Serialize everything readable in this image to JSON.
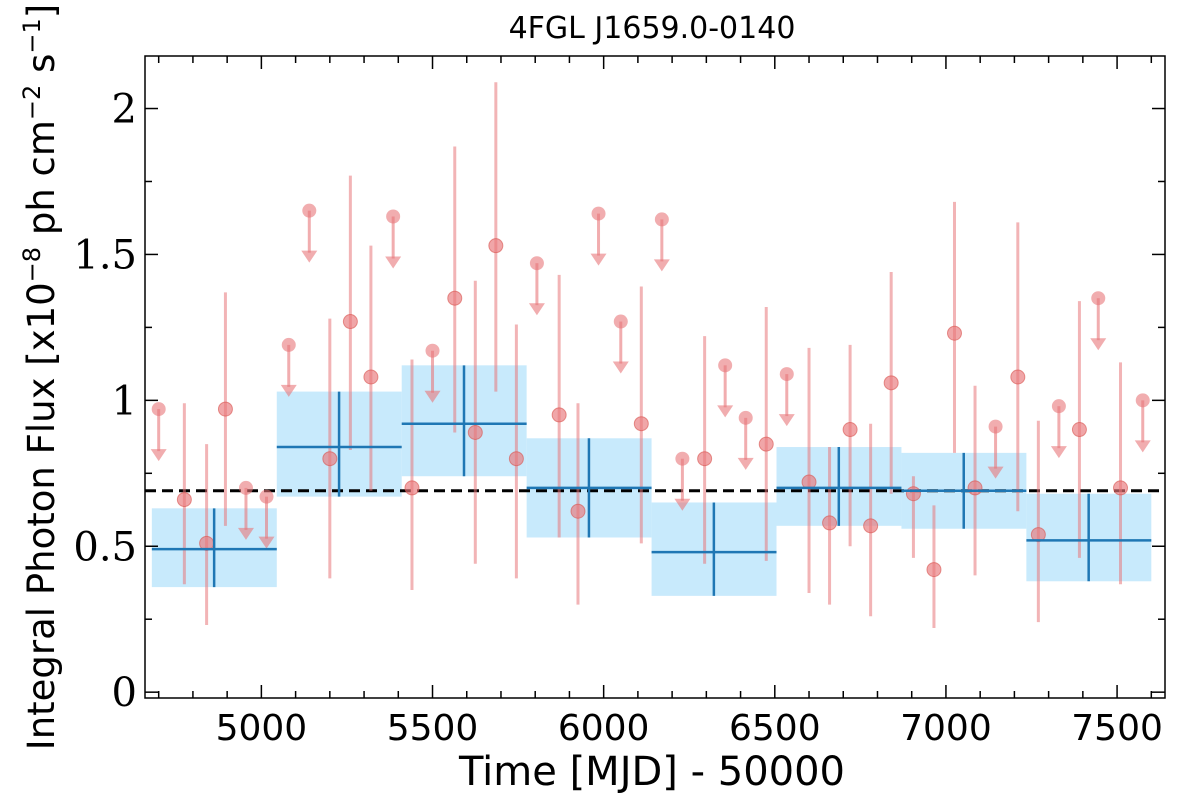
{
  "chart_data": {
    "type": "scatter",
    "title": "4FGL J1659.0-0140",
    "xlabel": "Time [MJD] - 50000",
    "ylabel": "Integral Photon Flux [x10−8 ph cm−2 s−1]",
    "ylabel_parts": {
      "p1": "Integral Photon Flux [x10",
      "s1": "−8",
      "p2": " ph cm",
      "s2": "−2",
      "p3": " s",
      "s3": "−1",
      "p4": "]"
    },
    "xlim": [
      4660,
      7640
    ],
    "ylim": [
      -0.02,
      2.18
    ],
    "xticks": [
      5000,
      5500,
      6000,
      6500,
      7000,
      7500
    ],
    "yticks": [
      0,
      0.5,
      1,
      1.5,
      2
    ],
    "yticklabels": [
      "0",
      "0.5",
      "1",
      "1.5",
      "2"
    ],
    "grid": false,
    "colors": {
      "monthly": "#e8777a",
      "yearly_line": "#1f77b4",
      "yearly_band": "#c8eafc",
      "average_line": "#000000"
    },
    "average_flux": 0.69,
    "monthly_points": [
      {
        "x": 4700,
        "y": 0.97,
        "upper_limit": true
      },
      {
        "x": 4775,
        "y": 0.66,
        "err_low": 0.29,
        "err_high": 0.33
      },
      {
        "x": 4840,
        "y": 0.51,
        "err_low": 0.28,
        "err_high": 0.34
      },
      {
        "x": 4895,
        "y": 0.97,
        "err_low": 0.4,
        "err_high": 0.4
      },
      {
        "x": 4955,
        "y": 0.7,
        "upper_limit": true
      },
      {
        "x": 5015,
        "y": 0.67,
        "upper_limit": true
      },
      {
        "x": 5080,
        "y": 1.19,
        "upper_limit": true
      },
      {
        "x": 5140,
        "y": 1.65,
        "upper_limit": true
      },
      {
        "x": 5200,
        "y": 0.8,
        "err_low": 0.41,
        "err_high": 0.48
      },
      {
        "x": 5260,
        "y": 1.27,
        "err_low": 0.44,
        "err_high": 0.5
      },
      {
        "x": 5320,
        "y": 1.08,
        "err_low": 0.39,
        "err_high": 0.45
      },
      {
        "x": 5385,
        "y": 1.63,
        "upper_limit": true
      },
      {
        "x": 5440,
        "y": 0.7,
        "err_low": 0.35,
        "err_high": 0.44
      },
      {
        "x": 5500,
        "y": 1.17,
        "upper_limit": true
      },
      {
        "x": 5565,
        "y": 1.35,
        "err_low": 0.46,
        "err_high": 0.52
      },
      {
        "x": 5625,
        "y": 0.89,
        "err_low": 0.45,
        "err_high": 0.52
      },
      {
        "x": 5685,
        "y": 1.53,
        "err_low": 0.5,
        "err_high": 0.56
      },
      {
        "x": 5745,
        "y": 0.8,
        "err_low": 0.41,
        "err_high": 0.46
      },
      {
        "x": 5805,
        "y": 1.47,
        "upper_limit": true
      },
      {
        "x": 5870,
        "y": 0.95,
        "err_low": 0.42,
        "err_high": 0.48
      },
      {
        "x": 5925,
        "y": 0.62,
        "err_low": 0.32,
        "err_high": 0.37
      },
      {
        "x": 5985,
        "y": 1.64,
        "upper_limit": true
      },
      {
        "x": 6050,
        "y": 1.27,
        "upper_limit": true
      },
      {
        "x": 6110,
        "y": 0.92,
        "err_low": 0.41,
        "err_high": 0.47
      },
      {
        "x": 6170,
        "y": 1.62,
        "upper_limit": true
      },
      {
        "x": 6230,
        "y": 0.8,
        "upper_limit": true
      },
      {
        "x": 6295,
        "y": 0.8,
        "err_low": 0.36,
        "err_high": 0.42
      },
      {
        "x": 6355,
        "y": 1.12,
        "upper_limit": true
      },
      {
        "x": 6415,
        "y": 0.94,
        "upper_limit": true
      },
      {
        "x": 6475,
        "y": 0.85,
        "err_low": 0.4,
        "err_high": 0.47
      },
      {
        "x": 6535,
        "y": 1.09,
        "upper_limit": true
      },
      {
        "x": 6600,
        "y": 0.72,
        "err_low": 0.38,
        "err_high": 0.46
      },
      {
        "x": 6660,
        "y": 0.58,
        "err_low": 0.28,
        "err_high": 0.26
      },
      {
        "x": 6720,
        "y": 0.9,
        "err_low": 0.4,
        "err_high": 0.29
      },
      {
        "x": 6780,
        "y": 0.57,
        "err_low": 0.31,
        "err_high": 0.35
      },
      {
        "x": 6840,
        "y": 1.06,
        "err_low": 0.38,
        "err_high": 0.38
      },
      {
        "x": 6905,
        "y": 0.68,
        "err_low": 0.22,
        "err_high": 0.06
      },
      {
        "x": 6965,
        "y": 0.42,
        "err_low": 0.2,
        "err_high": 0.22
      },
      {
        "x": 7025,
        "y": 1.23,
        "err_low": 0.41,
        "err_high": 0.45
      },
      {
        "x": 7085,
        "y": 0.7,
        "err_low": 0.3,
        "err_high": 0.35
      },
      {
        "x": 7145,
        "y": 0.91,
        "upper_limit": true
      },
      {
        "x": 7210,
        "y": 1.08,
        "err_low": 0.46,
        "err_high": 0.53
      },
      {
        "x": 7270,
        "y": 0.54,
        "err_low": 0.3,
        "err_high": 0.39
      },
      {
        "x": 7330,
        "y": 0.98,
        "upper_limit": true
      },
      {
        "x": 7390,
        "y": 0.9,
        "err_low": 0.44,
        "err_high": 0.44
      },
      {
        "x": 7445,
        "y": 1.35,
        "upper_limit": true
      },
      {
        "x": 7510,
        "y": 0.7,
        "err_low": 0.33,
        "err_high": 0.43
      },
      {
        "x": 7575,
        "y": 1.0,
        "upper_limit": true
      }
    ],
    "yearly_bins": [
      {
        "x_start": 4680,
        "x_end": 5045,
        "x": 4862,
        "y": 0.49,
        "y_low": 0.36,
        "y_high": 0.63
      },
      {
        "x_start": 5045,
        "x_end": 5410,
        "x": 5227,
        "y": 0.84,
        "y_low": 0.67,
        "y_high": 1.03
      },
      {
        "x_start": 5410,
        "x_end": 5775,
        "x": 5592,
        "y": 0.92,
        "y_low": 0.74,
        "y_high": 1.12
      },
      {
        "x_start": 5775,
        "x_end": 6140,
        "x": 5957,
        "y": 0.7,
        "y_low": 0.53,
        "y_high": 0.87
      },
      {
        "x_start": 6140,
        "x_end": 6505,
        "x": 6322,
        "y": 0.48,
        "y_low": 0.33,
        "y_high": 0.65
      },
      {
        "x_start": 6505,
        "x_end": 6870,
        "x": 6687,
        "y": 0.7,
        "y_low": 0.57,
        "y_high": 0.84
      },
      {
        "x_start": 6870,
        "x_end": 7235,
        "x": 7052,
        "y": 0.69,
        "y_low": 0.56,
        "y_high": 0.82
      },
      {
        "x_start": 7235,
        "x_end": 7600,
        "x": 7417,
        "y": 0.52,
        "y_low": 0.38,
        "y_high": 0.68
      }
    ]
  }
}
